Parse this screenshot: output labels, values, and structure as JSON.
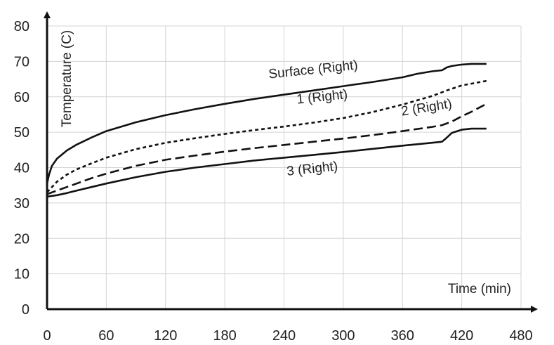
{
  "chart_data": {
    "type": "line",
    "title": "",
    "xlabel": "Time (min)",
    "ylabel": "Temperature (C)",
    "xlim": [
      0,
      480
    ],
    "ylim": [
      0,
      80
    ],
    "xticks": [
      0,
      60,
      120,
      180,
      240,
      300,
      360,
      420,
      480
    ],
    "yticks": [
      0,
      10,
      20,
      30,
      40,
      50,
      60,
      70,
      80
    ],
    "grid": true,
    "legend": "none (series labelled directly on the lines)",
    "series": [
      {
        "name": "Surface (Right)",
        "style": "solid",
        "x": [
          0,
          2,
          5,
          10,
          20,
          30,
          45,
          60,
          90,
          120,
          150,
          180,
          210,
          240,
          270,
          300,
          330,
          360,
          375,
          390,
          400,
          405,
          410,
          420,
          430,
          445
        ],
        "y": [
          35.5,
          38,
          40.5,
          42.5,
          44.8,
          46.5,
          48.5,
          50.3,
          52.8,
          54.8,
          56.5,
          58,
          59.4,
          60.6,
          61.8,
          63,
          64.2,
          65.5,
          66.5,
          67.2,
          67.5,
          68.3,
          68.7,
          69.1,
          69.3,
          69.3
        ]
      },
      {
        "name": "1 (Right)",
        "style": "dotted",
        "x": [
          0,
          5,
          10,
          20,
          30,
          45,
          60,
          90,
          120,
          150,
          180,
          210,
          240,
          270,
          300,
          330,
          360,
          390,
          405,
          420,
          445
        ],
        "y": [
          33,
          34.5,
          36,
          38,
          39.5,
          41.2,
          42.8,
          45.2,
          47,
          48.3,
          49.5,
          50.6,
          51.6,
          52.7,
          54,
          55.7,
          57.8,
          60.2,
          61.8,
          63.2,
          64.5
        ]
      },
      {
        "name": "2 (Right)",
        "style": "dashed",
        "x": [
          0,
          10,
          20,
          30,
          45,
          60,
          90,
          120,
          150,
          180,
          210,
          240,
          270,
          300,
          330,
          360,
          390,
          400,
          410,
          420,
          430,
          445
        ],
        "y": [
          32.5,
          33.5,
          34.5,
          35.5,
          37,
          38.3,
          40.5,
          42.2,
          43.4,
          44.5,
          45.5,
          46.4,
          47.3,
          48.2,
          49.2,
          50.3,
          51.5,
          52,
          53,
          54.5,
          55.8,
          58
        ]
      },
      {
        "name": "3 (Right)",
        "style": "solid",
        "x": [
          0,
          10,
          20,
          30,
          45,
          60,
          90,
          120,
          150,
          180,
          210,
          240,
          270,
          300,
          330,
          360,
          390,
          400,
          405,
          410,
          420,
          430,
          445
        ],
        "y": [
          31.8,
          32.2,
          32.8,
          33.5,
          34.5,
          35.5,
          37.3,
          38.8,
          40,
          41,
          42,
          42.8,
          43.6,
          44.4,
          45.3,
          46.2,
          47,
          47.3,
          48.5,
          49.8,
          50.7,
          51,
          51
        ]
      }
    ],
    "annotations": [
      {
        "text": "Surface (Right)",
        "x": 270,
        "y": 66.5,
        "rotate": -6
      },
      {
        "text": "1 (Right)",
        "x": 279,
        "y": 58.8,
        "rotate": -6
      },
      {
        "text": "2 (Right)",
        "x": 385,
        "y": 55.8,
        "rotate": -9
      },
      {
        "text": "3 (Right)",
        "x": 269,
        "y": 38.5,
        "rotate": -6
      }
    ]
  }
}
